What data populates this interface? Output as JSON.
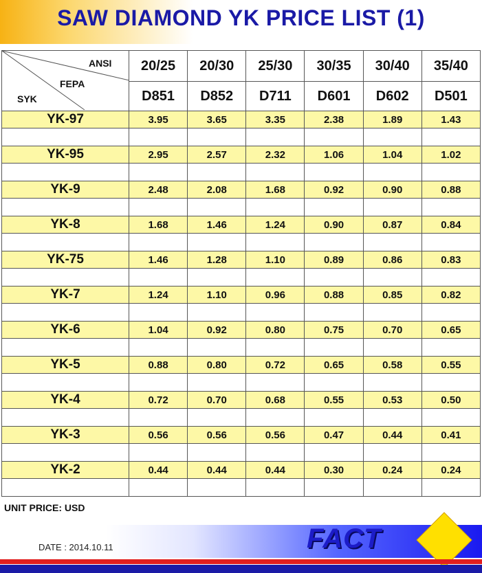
{
  "title": "SAW DIAMOND YK PRICE LIST (1)",
  "corner": {
    "ansi_label": "ANSI",
    "fepa_label": "FEPA",
    "syk_label": "SYK"
  },
  "ansi_sizes": [
    "20/25",
    "20/30",
    "25/30",
    "30/35",
    "30/40",
    "35/40"
  ],
  "fepa_sizes": [
    "D851",
    "D852",
    "D711",
    "D601",
    "D602",
    "D501"
  ],
  "rows": [
    {
      "grade": "YK-97",
      "prices": [
        "3.95",
        "3.65",
        "3.35",
        "2.38",
        "1.89",
        "1.43"
      ]
    },
    {
      "grade": "YK-95",
      "prices": [
        "2.95",
        "2.57",
        "2.32",
        "1.06",
        "1.04",
        "1.02"
      ]
    },
    {
      "grade": "YK-9",
      "prices": [
        "2.48",
        "2.08",
        "1.68",
        "0.92",
        "0.90",
        "0.88"
      ]
    },
    {
      "grade": "YK-8",
      "prices": [
        "1.68",
        "1.46",
        "1.24",
        "0.90",
        "0.87",
        "0.84"
      ]
    },
    {
      "grade": "YK-75",
      "prices": [
        "1.46",
        "1.28",
        "1.10",
        "0.89",
        "0.86",
        "0.83"
      ]
    },
    {
      "grade": "YK-7",
      "prices": [
        "1.24",
        "1.10",
        "0.96",
        "0.88",
        "0.85",
        "0.82"
      ]
    },
    {
      "grade": "YK-6",
      "prices": [
        "1.04",
        "0.92",
        "0.80",
        "0.75",
        "0.70",
        "0.65"
      ]
    },
    {
      "grade": "YK-5",
      "prices": [
        "0.88",
        "0.80",
        "0.72",
        "0.65",
        "0.58",
        "0.55"
      ]
    },
    {
      "grade": "YK-4",
      "prices": [
        "0.72",
        "0.70",
        "0.68",
        "0.55",
        "0.53",
        "0.50"
      ]
    },
    {
      "grade": "YK-3",
      "prices": [
        "0.56",
        "0.56",
        "0.56",
        "0.47",
        "0.44",
        "0.41"
      ]
    },
    {
      "grade": "YK-2",
      "prices": [
        "0.44",
        "0.44",
        "0.44",
        "0.30",
        "0.24",
        "0.24"
      ]
    }
  ],
  "unit_note": "UNIT PRICE: USD",
  "date": "DATE : 2014.10.11",
  "logo_text": "FACT",
  "colors": {
    "title": "#1a1aa6",
    "row_highlight": "#fdf8a6",
    "accent_orange": "#f7b214",
    "logo_yellow": "#ffe000",
    "stripe_red": "#e21f1f"
  }
}
